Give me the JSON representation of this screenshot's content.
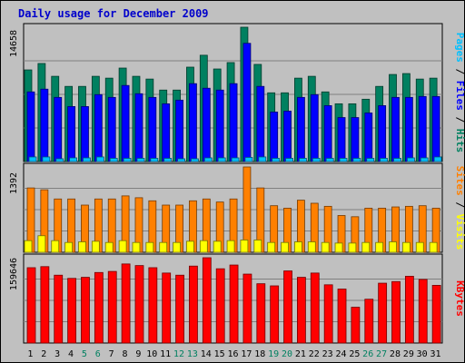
{
  "chart_data": {
    "type": "bar",
    "title": "Daily usage for December 2009",
    "categories": [
      "1",
      "2",
      "3",
      "4",
      "5",
      "6",
      "7",
      "8",
      "9",
      "10",
      "11",
      "12",
      "13",
      "14",
      "15",
      "16",
      "17",
      "18",
      "19",
      "20",
      "21",
      "22",
      "23",
      "24",
      "25",
      "26",
      "27",
      "28",
      "29",
      "30",
      "31"
    ],
    "weekend_days": [
      "5",
      "6",
      "12",
      "13",
      "19",
      "20",
      "26",
      "27"
    ],
    "panels": [
      {
        "id": "pages-files-hits",
        "ymax_label": "14658",
        "ylim": [
          0,
          14658
        ],
        "legend": [
          {
            "text": "Pages",
            "color": "#00c0ff"
          },
          {
            "text": " / ",
            "color": "#000000"
          },
          {
            "text": "Files",
            "color": "#0000ff"
          },
          {
            "text": " / ",
            "color": "#000000"
          },
          {
            "text": "Hits",
            "color": "#008060"
          }
        ],
        "series": [
          {
            "name": "Hits",
            "color": "#008060",
            "values": [
              10000,
              10700,
              9300,
              8200,
              8200,
              9300,
              9100,
              10200,
              9300,
              9000,
              7800,
              7800,
              10300,
              11600,
              10100,
              10800,
              14658,
              10600,
              7500,
              7500,
              9100,
              9300,
              7600,
              6300,
              6300,
              6800,
              8200,
              9500,
              9600,
              9000,
              9100
            ]
          },
          {
            "name": "Files",
            "color": "#0000ff",
            "values": [
              7600,
              7900,
              7000,
              6000,
              6000,
              7300,
              7000,
              8300,
              7400,
              7000,
              6300,
              6700,
              8500,
              8000,
              7800,
              8500,
              12900,
              8200,
              5400,
              5500,
              7000,
              7300,
              6100,
              4800,
              4800,
              5300,
              6100,
              7000,
              7000,
              7100,
              7100
            ]
          },
          {
            "name": "Pages",
            "color": "#00c0ff",
            "values": [
              500,
              500,
              300,
              400,
              400,
              500,
              350,
              350,
              350,
              350,
              350,
              300,
              300,
              400,
              400,
              400,
              450,
              500,
              350,
              350,
              350,
              350,
              350,
              350,
              350,
              350,
              350,
              350,
              400,
              400,
              500
            ]
          }
        ]
      },
      {
        "id": "sites-visits",
        "ymax_label": "1392",
        "ylim": [
          0,
          1392
        ],
        "legend": [
          {
            "text": "Sites",
            "color": "#ff8000"
          },
          {
            "text": " / ",
            "color": "#000000"
          },
          {
            "text": "Visits",
            "color": "#ffff00"
          }
        ],
        "series": [
          {
            "name": "Visits",
            "color": "#ff8000",
            "values": [
              1050,
              1020,
              870,
              870,
              770,
              870,
              870,
              920,
              890,
              840,
              770,
              770,
              840,
              870,
              820,
              870,
              1392,
              1050,
              760,
              720,
              850,
              800,
              750,
              600,
              580,
              720,
              720,
              740,
              750,
              760,
              720
            ]
          },
          {
            "name": "Sites",
            "color": "#ffff00",
            "values": [
              190,
              270,
              190,
              160,
              170,
              180,
              160,
              190,
              160,
              160,
              160,
              160,
              180,
              190,
              180,
              190,
              200,
              200,
              160,
              160,
              170,
              170,
              160,
              150,
              150,
              160,
              160,
              170,
              160,
              160,
              160
            ]
          }
        ]
      },
      {
        "id": "kbytes",
        "ymax_label": "159646",
        "ylim": [
          0,
          159646
        ],
        "legend": [
          {
            "text": "KBytes",
            "color": "#ff0000"
          }
        ],
        "series": [
          {
            "name": "KBytes",
            "color": "#ff0000",
            "values": [
              141000,
              143000,
              127000,
              121000,
              123000,
              132000,
              134000,
              148000,
              145000,
              141000,
              131000,
              127000,
              144000,
              159646,
              139000,
              146000,
              129000,
              111000,
              107000,
              135000,
              123000,
              131000,
              109000,
              101000,
              67000,
              82000,
              112000,
              115000,
              125000,
              119000,
              108000
            ]
          }
        ]
      }
    ]
  }
}
